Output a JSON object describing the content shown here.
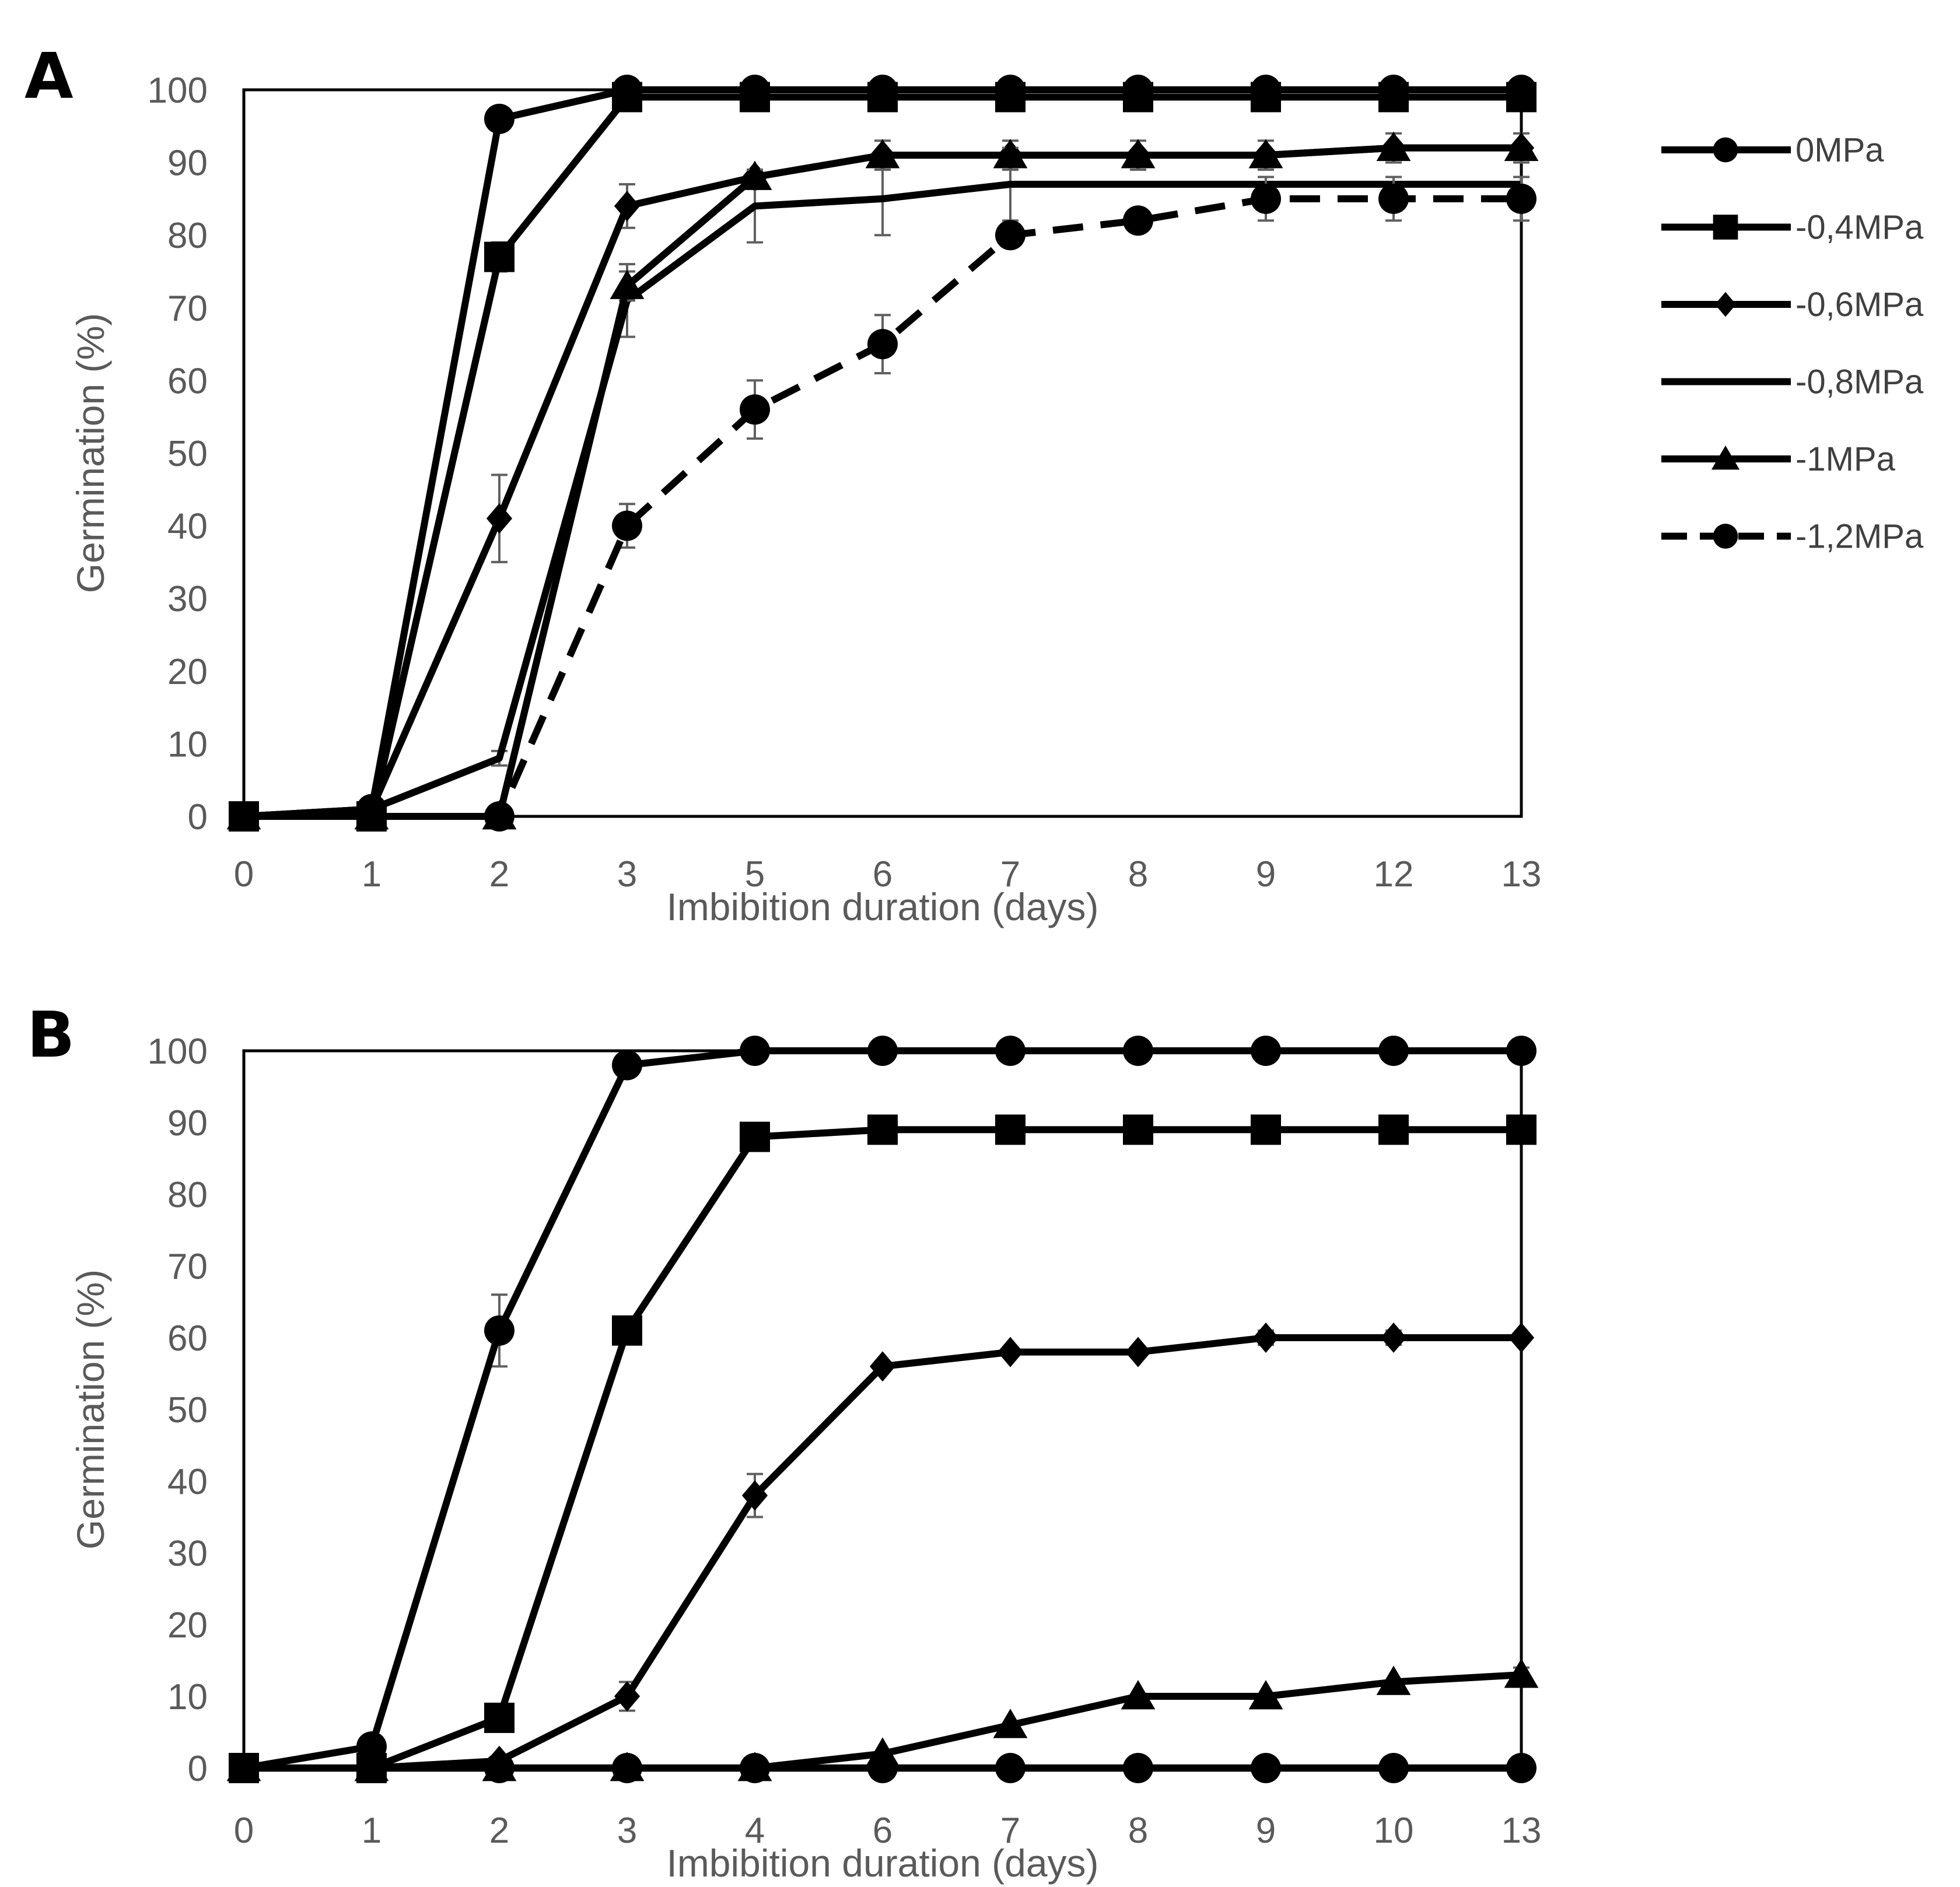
{
  "chart_data": [
    {
      "panel": "A",
      "type": "line",
      "xlabel": "Imbibition duration (days)",
      "ylabel": "Germination (%)",
      "categories": [
        "0",
        "1",
        "2",
        "3",
        "5",
        "6",
        "7",
        "8",
        "9",
        "12",
        "13"
      ],
      "yticks": [
        0,
        10,
        20,
        30,
        40,
        50,
        60,
        70,
        80,
        90,
        100
      ],
      "ylim": [
        0,
        100
      ],
      "series": [
        {
          "name": "0MPa",
          "marker": "circle",
          "dash": false,
          "values": [
            0,
            1,
            96,
            100,
            100,
            100,
            100,
            100,
            100,
            100,
            100
          ],
          "errors": [
            0,
            0,
            0,
            0,
            0,
            0,
            0,
            0,
            0,
            0,
            0
          ]
        },
        {
          "name": "-0,4MPa",
          "marker": "square",
          "dash": false,
          "values": [
            0,
            0,
            77,
            99,
            99,
            99,
            99,
            99,
            99,
            99,
            99
          ],
          "errors": [
            0,
            0,
            2,
            0,
            0,
            0,
            0,
            0,
            0,
            0,
            0
          ]
        },
        {
          "name": "-0,6MPa",
          "marker": "diamond",
          "dash": false,
          "values": [
            0,
            1,
            41,
            84,
            88,
            91,
            91,
            91,
            91,
            92,
            92
          ],
          "errors": [
            0,
            0,
            6,
            3,
            0,
            0,
            0,
            0,
            0,
            0,
            0
          ]
        },
        {
          "name": "-0,8MPa",
          "marker": "none",
          "dash": false,
          "values": [
            0,
            1,
            8,
            71,
            84,
            85,
            87,
            87,
            87,
            87,
            87
          ],
          "errors": [
            0,
            0,
            1,
            5,
            5,
            5,
            5,
            0,
            0,
            0,
            0
          ]
        },
        {
          "name": "-1MPa",
          "marker": "triangle",
          "dash": false,
          "values": [
            0,
            0,
            0,
            73,
            88,
            91,
            91,
            91,
            91,
            92,
            92
          ],
          "errors": [
            0,
            0,
            0,
            2,
            0,
            2,
            2,
            2,
            2,
            2,
            2
          ]
        },
        {
          "name": "-1,2MPa",
          "marker": "circle",
          "dash": true,
          "values": [
            0,
            0,
            0,
            40,
            56,
            65,
            80,
            82,
            85,
            85,
            85
          ],
          "errors": [
            0,
            0,
            0,
            3,
            4,
            4,
            0,
            0,
            3,
            3,
            3
          ]
        }
      ]
    },
    {
      "panel": "B",
      "type": "line",
      "xlabel": "Imbibition duration (days)",
      "ylabel": "Germination (%)",
      "categories": [
        "0",
        "1",
        "2",
        "3",
        "4",
        "6",
        "7",
        "8",
        "9",
        "10",
        "13"
      ],
      "yticks": [
        0,
        10,
        20,
        30,
        40,
        50,
        60,
        70,
        80,
        90,
        100
      ],
      "ylim": [
        0,
        100
      ],
      "series": [
        {
          "name": "0MPa",
          "marker": "circle",
          "dash": false,
          "values": [
            0,
            3,
            61,
            98,
            100,
            100,
            100,
            100,
            100,
            100,
            100
          ],
          "errors": [
            0,
            0,
            5,
            0,
            0,
            0,
            0,
            0,
            0,
            0,
            0
          ]
        },
        {
          "name": "-0,4MPa",
          "marker": "square",
          "dash": false,
          "values": [
            0,
            0,
            7,
            61,
            88,
            89,
            89,
            89,
            89,
            89,
            89
          ],
          "errors": [
            0,
            0,
            0,
            0,
            0,
            0,
            0,
            0,
            0,
            0,
            0
          ]
        },
        {
          "name": "-0,6MPa",
          "marker": "diamond",
          "dash": false,
          "values": [
            0,
            0,
            1,
            10,
            38,
            56,
            58,
            58,
            60,
            60,
            60
          ],
          "errors": [
            0,
            0,
            0,
            2,
            3,
            0,
            0,
            0,
            1,
            1,
            0
          ]
        },
        {
          "name": "-0,8MPa",
          "marker": "none",
          "dash": false,
          "values": [
            0,
            0,
            0,
            0,
            0,
            0,
            0,
            0,
            0,
            0,
            0
          ],
          "errors": [
            0,
            0,
            0,
            0,
            0,
            0,
            0,
            0,
            0,
            0,
            0
          ]
        },
        {
          "name": "-1MPa",
          "marker": "triangle",
          "dash": false,
          "values": [
            0,
            0,
            0,
            0,
            0,
            2,
            6,
            10,
            10,
            12,
            13
          ],
          "errors": [
            0,
            0,
            0,
            0,
            0,
            0,
            0,
            0,
            0,
            0,
            1
          ]
        },
        {
          "name": "-1,2MPa",
          "marker": "circle",
          "dash": true,
          "values": [
            0,
            0,
            0,
            0,
            0,
            0,
            0,
            0,
            0,
            0,
            0
          ],
          "errors": [
            0,
            0,
            0,
            0,
            0,
            0,
            0,
            0,
            0,
            0,
            0
          ]
        }
      ]
    }
  ],
  "legend": [
    {
      "label": "0MPa",
      "marker": "circle",
      "dash": false
    },
    {
      "label": "-0,4MPa",
      "marker": "square",
      "dash": false
    },
    {
      "label": "-0,6MPa",
      "marker": "diamond",
      "dash": false
    },
    {
      "label": "-0,8MPa",
      "marker": "none",
      "dash": false
    },
    {
      "label": "-1MPa",
      "marker": "triangle",
      "dash": false
    },
    {
      "label": "-1,2MPa",
      "marker": "circle",
      "dash": true
    }
  ],
  "colors": {
    "line": "#000000",
    "axis": "#000000",
    "tick_text": "#5a5a5a",
    "error_bar": "#606060",
    "baseline_b": "#bfbfbf"
  }
}
